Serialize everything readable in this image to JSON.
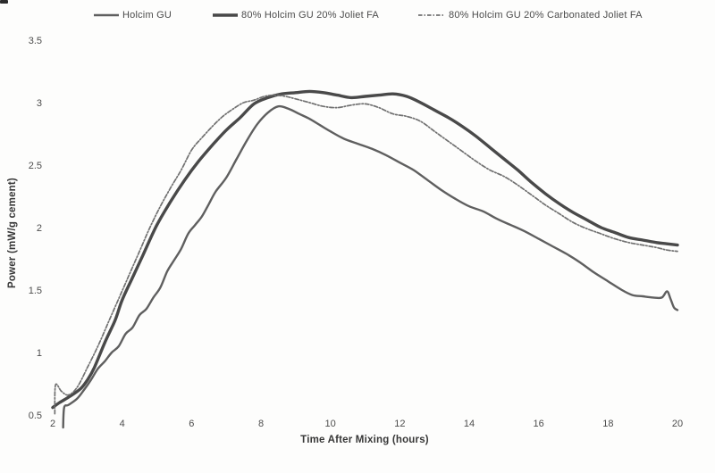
{
  "figure": {
    "scan_artifact": "dark-corner-mark",
    "background": "#fdfdfc",
    "legend_position": "top"
  },
  "axes": {
    "xlabel": "Time After Mixing (hours)",
    "ylabel": "Power (mW/g cement)"
  },
  "chart_data": {
    "type": "line",
    "title": "",
    "xlabel": "Time After Mixing (hours)",
    "ylabel": "Power (mW/g cement)",
    "xlim": [
      2,
      20
    ],
    "ylim": [
      0.5,
      3.5
    ],
    "xticks": [
      2,
      4,
      6,
      8,
      10,
      12,
      14,
      16,
      18,
      20
    ],
    "yticks": [
      0.5,
      1,
      1.5,
      2,
      2.5,
      3,
      3.5
    ],
    "grid": false,
    "legend_position": "top",
    "series": [
      {
        "name": "Holcim GU",
        "style": "solid",
        "color": "#5f5f5f",
        "width": 2.4,
        "dash": "",
        "peak": {
          "t": 8.5,
          "v": 2.97
        },
        "points": [
          [
            2.3,
            0.4
          ],
          [
            2.33,
            0.56
          ],
          [
            2.45,
            0.58
          ],
          [
            2.7,
            0.63
          ],
          [
            2.9,
            0.7
          ],
          [
            3.1,
            0.78
          ],
          [
            3.3,
            0.87
          ],
          [
            3.5,
            0.93
          ],
          [
            3.7,
            1.0
          ],
          [
            3.9,
            1.05
          ],
          [
            4.1,
            1.15
          ],
          [
            4.3,
            1.2
          ],
          [
            4.5,
            1.3
          ],
          [
            4.7,
            1.35
          ],
          [
            4.9,
            1.44
          ],
          [
            5.1,
            1.52
          ],
          [
            5.3,
            1.65
          ],
          [
            5.5,
            1.74
          ],
          [
            5.7,
            1.83
          ],
          [
            5.9,
            1.95
          ],
          [
            6.1,
            2.02
          ],
          [
            6.3,
            2.09
          ],
          [
            6.5,
            2.19
          ],
          [
            6.7,
            2.29
          ],
          [
            7.0,
            2.4
          ],
          [
            7.3,
            2.55
          ],
          [
            7.6,
            2.7
          ],
          [
            7.9,
            2.83
          ],
          [
            8.2,
            2.92
          ],
          [
            8.5,
            2.97
          ],
          [
            8.8,
            2.95
          ],
          [
            9.1,
            2.91
          ],
          [
            9.4,
            2.87
          ],
          [
            9.7,
            2.82
          ],
          [
            10.0,
            2.77
          ],
          [
            10.4,
            2.71
          ],
          [
            10.8,
            2.67
          ],
          [
            11.2,
            2.63
          ],
          [
            11.6,
            2.58
          ],
          [
            12.0,
            2.52
          ],
          [
            12.4,
            2.46
          ],
          [
            12.8,
            2.38
          ],
          [
            13.2,
            2.3
          ],
          [
            13.6,
            2.23
          ],
          [
            14.0,
            2.17
          ],
          [
            14.4,
            2.13
          ],
          [
            14.8,
            2.07
          ],
          [
            15.2,
            2.02
          ],
          [
            15.6,
            1.97
          ],
          [
            16.0,
            1.91
          ],
          [
            16.4,
            1.85
          ],
          [
            16.8,
            1.79
          ],
          [
            17.2,
            1.72
          ],
          [
            17.6,
            1.64
          ],
          [
            18.0,
            1.57
          ],
          [
            18.4,
            1.5
          ],
          [
            18.7,
            1.46
          ],
          [
            19.0,
            1.45
          ],
          [
            19.3,
            1.44
          ],
          [
            19.55,
            1.44
          ],
          [
            19.7,
            1.49
          ],
          [
            19.8,
            1.43
          ],
          [
            19.9,
            1.36
          ],
          [
            20.0,
            1.34
          ]
        ]
      },
      {
        "name": "80% Holcim GU 20% Joliet FA",
        "style": "solid",
        "color": "#484848",
        "width": 3.4,
        "dash": "",
        "peak": {
          "t": 9.4,
          "v": 3.09
        },
        "points": [
          [
            2.0,
            0.56
          ],
          [
            2.2,
            0.6
          ],
          [
            2.5,
            0.65
          ],
          [
            2.8,
            0.71
          ],
          [
            3.0,
            0.78
          ],
          [
            3.2,
            0.88
          ],
          [
            3.5,
            1.08
          ],
          [
            3.8,
            1.26
          ],
          [
            4.0,
            1.42
          ],
          [
            4.3,
            1.6
          ],
          [
            4.6,
            1.78
          ],
          [
            5.0,
            2.02
          ],
          [
            5.4,
            2.21
          ],
          [
            5.8,
            2.38
          ],
          [
            6.2,
            2.53
          ],
          [
            6.6,
            2.66
          ],
          [
            7.0,
            2.78
          ],
          [
            7.4,
            2.88
          ],
          [
            7.8,
            2.99
          ],
          [
            8.2,
            3.04
          ],
          [
            8.6,
            3.07
          ],
          [
            9.0,
            3.08
          ],
          [
            9.4,
            3.09
          ],
          [
            9.8,
            3.08
          ],
          [
            10.2,
            3.06
          ],
          [
            10.6,
            3.04
          ],
          [
            11.0,
            3.05
          ],
          [
            11.4,
            3.06
          ],
          [
            11.8,
            3.07
          ],
          [
            12.2,
            3.05
          ],
          [
            12.6,
            3.0
          ],
          [
            13.0,
            2.94
          ],
          [
            13.4,
            2.88
          ],
          [
            13.8,
            2.81
          ],
          [
            14.2,
            2.73
          ],
          [
            14.6,
            2.64
          ],
          [
            15.0,
            2.55
          ],
          [
            15.4,
            2.46
          ],
          [
            15.8,
            2.36
          ],
          [
            16.2,
            2.27
          ],
          [
            16.6,
            2.19
          ],
          [
            17.0,
            2.12
          ],
          [
            17.4,
            2.06
          ],
          [
            17.8,
            2.0
          ],
          [
            18.2,
            1.96
          ],
          [
            18.6,
            1.92
          ],
          [
            19.0,
            1.9
          ],
          [
            19.4,
            1.88
          ],
          [
            19.7,
            1.87
          ],
          [
            20.0,
            1.86
          ]
        ]
      },
      {
        "name": "80% Holcim GU 20% Carbonated Joliet FA",
        "style": "dash-dot",
        "color": "#707070",
        "width": 1.7,
        "dash": "4.5 2 1.5 2",
        "peak": {
          "t": 8.3,
          "v": 3.06
        },
        "points": [
          [
            2.06,
            0.51
          ],
          [
            2.08,
            0.74
          ],
          [
            2.25,
            0.69
          ],
          [
            2.45,
            0.66
          ],
          [
            2.7,
            0.72
          ],
          [
            3.0,
            0.88
          ],
          [
            3.3,
            1.05
          ],
          [
            3.6,
            1.24
          ],
          [
            3.9,
            1.43
          ],
          [
            4.2,
            1.62
          ],
          [
            4.5,
            1.81
          ],
          [
            4.8,
            2.0
          ],
          [
            5.1,
            2.17
          ],
          [
            5.4,
            2.32
          ],
          [
            5.7,
            2.46
          ],
          [
            6.0,
            2.62
          ],
          [
            6.3,
            2.72
          ],
          [
            6.6,
            2.81
          ],
          [
            6.9,
            2.89
          ],
          [
            7.2,
            2.95
          ],
          [
            7.5,
            3.0
          ],
          [
            7.8,
            3.02
          ],
          [
            8.1,
            3.05
          ],
          [
            8.4,
            3.06
          ],
          [
            8.7,
            3.05
          ],
          [
            9.0,
            3.03
          ],
          [
            9.4,
            3.0
          ],
          [
            9.8,
            2.97
          ],
          [
            10.2,
            2.96
          ],
          [
            10.6,
            2.98
          ],
          [
            11.0,
            2.99
          ],
          [
            11.4,
            2.96
          ],
          [
            11.8,
            2.91
          ],
          [
            12.2,
            2.89
          ],
          [
            12.6,
            2.85
          ],
          [
            13.0,
            2.77
          ],
          [
            13.4,
            2.69
          ],
          [
            13.8,
            2.61
          ],
          [
            14.2,
            2.53
          ],
          [
            14.6,
            2.46
          ],
          [
            15.0,
            2.41
          ],
          [
            15.4,
            2.34
          ],
          [
            15.8,
            2.26
          ],
          [
            16.2,
            2.18
          ],
          [
            16.6,
            2.11
          ],
          [
            17.0,
            2.04
          ],
          [
            17.4,
            1.99
          ],
          [
            17.8,
            1.95
          ],
          [
            18.2,
            1.91
          ],
          [
            18.6,
            1.88
          ],
          [
            19.0,
            1.86
          ],
          [
            19.4,
            1.84
          ],
          [
            19.7,
            1.82
          ],
          [
            20.0,
            1.81
          ]
        ]
      }
    ]
  }
}
